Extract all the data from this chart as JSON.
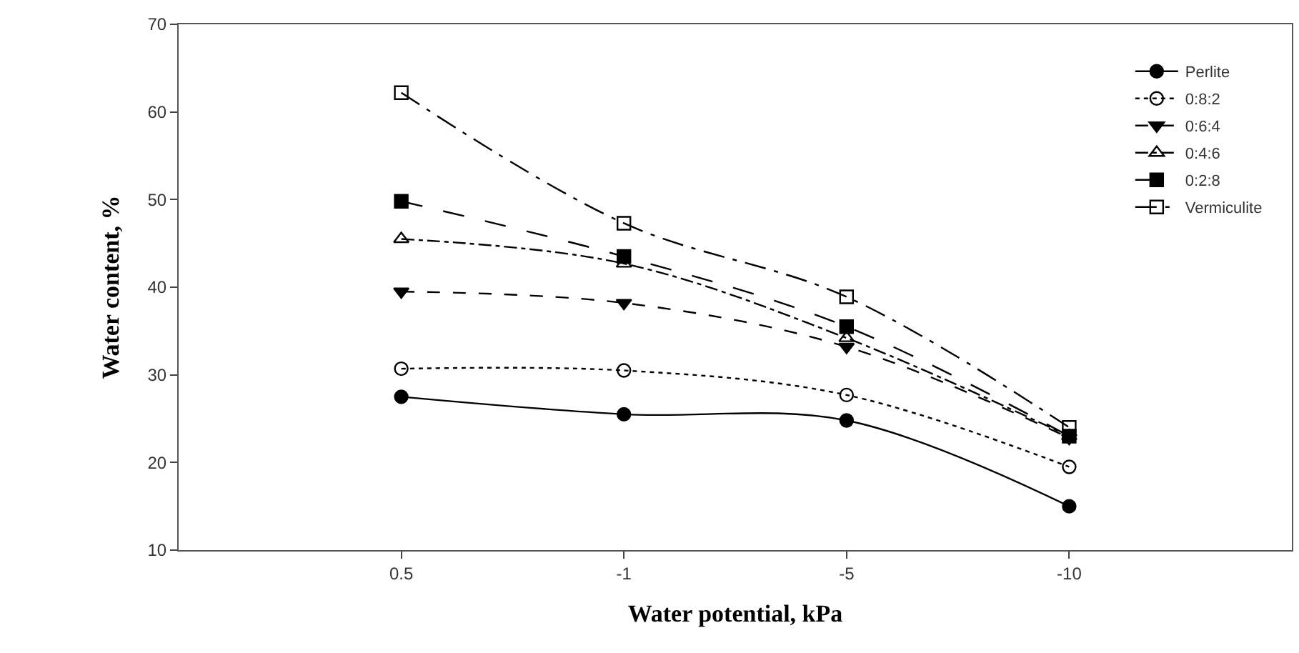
{
  "chart_data": {
    "type": "line",
    "xlabel": "Water potential, kPa",
    "ylabel": "Water content, %",
    "categories": [
      "0.5",
      "-1",
      "-5",
      "-10"
    ],
    "series": [
      {
        "name": "Perlite",
        "color": "#000000",
        "values": [
          27.5,
          25.5,
          24.8,
          15
        ],
        "marker": "circle",
        "line_style": "solid"
      },
      {
        "name": "0:8:2",
        "color": "#000000",
        "values": [
          30.7,
          30.5,
          27.7,
          19.5
        ],
        "marker": "circle-open",
        "line_style": "dotted"
      },
      {
        "name": "0:6:4",
        "color": "#000000",
        "values": [
          39.5,
          38.2,
          33.2,
          22.8
        ],
        "marker": "triangle-down",
        "line_style": "dashed"
      },
      {
        "name": "0:4:6",
        "color": "#000000",
        "values": [
          45.5,
          42.7,
          34.2,
          23
        ],
        "marker": "triangle-up-open",
        "line_style": "dashdot"
      },
      {
        "name": "0:2:8",
        "color": "#000000",
        "values": [
          49.8,
          43.5,
          35.5,
          23
        ],
        "marker": "square",
        "line_style": "longdash"
      },
      {
        "name": "Vermiculite",
        "color": "#000000",
        "values": [
          62.2,
          47.3,
          38.9,
          24
        ],
        "marker": "square-open",
        "line_style": "longdashdot"
      }
    ],
    "ylim": [
      10,
      70
    ],
    "yticks": [
      10,
      20,
      30,
      40,
      50,
      60,
      70
    ],
    "legend": "top right"
  }
}
